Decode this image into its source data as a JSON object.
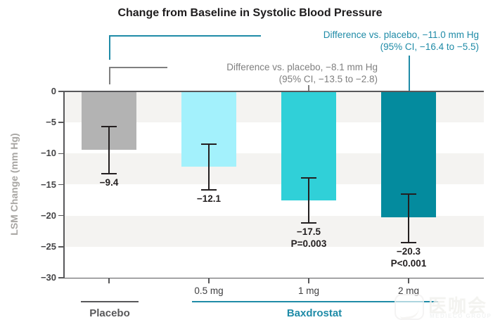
{
  "title": "Change from Baseline in Systolic Blood Pressure",
  "chart_data": {
    "type": "bar",
    "title": "Change from Baseline in Systolic Blood Pressure",
    "ylabel": "LSM Change (mm Hg)",
    "ylim": [
      -30,
      0
    ],
    "grid": "alternating horizontal bands every 5 units",
    "ytick_values": [
      0,
      -5,
      -10,
      -15,
      -20,
      -25,
      -30
    ],
    "ytick_labels": [
      "0",
      "−5",
      "−10",
      "−15",
      "−20",
      "−25",
      "−30"
    ],
    "bars": [
      {
        "id": "placebo",
        "dose_label": "",
        "value": -9.4,
        "value_label": "−9.4",
        "p_label": "",
        "ci": [
          -13.3,
          -5.7
        ],
        "color": "#b3b3b3"
      },
      {
        "id": "baxdrostat-0-5mg",
        "dose_label": "0.5 mg",
        "value": -12.1,
        "value_label": "−12.1",
        "p_label": "",
        "ci": [
          -15.9,
          -8.5
        ],
        "color": "#a3f1fc"
      },
      {
        "id": "baxdrostat-1mg",
        "dose_label": "1 mg",
        "value": -17.5,
        "value_label": "−17.5",
        "p_label": "P=0.003",
        "ci": [
          -21.2,
          -13.9
        ],
        "color": "#30d0d8"
      },
      {
        "id": "baxdrostat-2mg",
        "dose_label": "2 mg",
        "value": -20.3,
        "value_label": "−20.3",
        "p_label": "P<0.001",
        "ci": [
          -24.3,
          -16.5
        ],
        "color": "#048b9e"
      }
    ],
    "groups": [
      {
        "label": "Placebo",
        "color": "#58585a"
      },
      {
        "label": "Baxdrostat",
        "color": "#1f8ba7"
      }
    ],
    "annotations": [
      {
        "line1": "Difference vs. placebo, −8.1 mm Hg",
        "line2": "(95% CI, −13.5 to −2.8)",
        "color": "#7f7f7f",
        "target": "1 mg vs. placebo"
      },
      {
        "line1": "Difference vs. placebo, −11.0 mm Hg",
        "line2": "(95% CI, −16.4 to −5.5)",
        "color": "#1f8ba7",
        "target": "2 mg vs. placebo"
      }
    ],
    "band_color": "#f4f3f1",
    "axis_color": "#58585a",
    "legend_position": "none"
  },
  "watermark": {
    "cn": "医咖会",
    "en": "MEDIECO GROUP"
  }
}
